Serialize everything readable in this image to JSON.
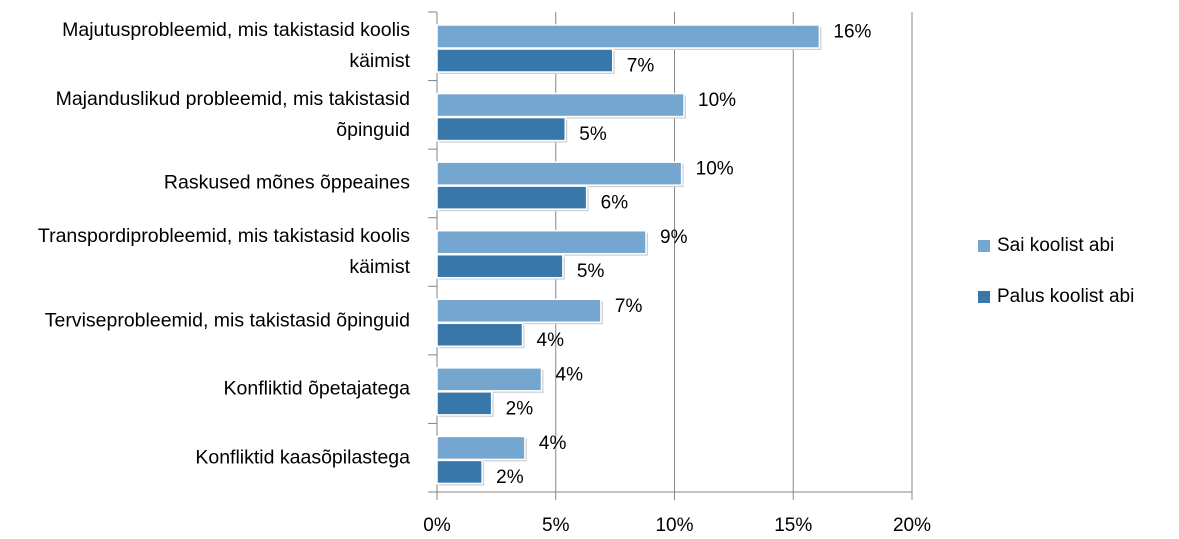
{
  "chart_data": {
    "type": "bar",
    "orientation": "horizontal",
    "categories": [
      "Majutusprobleemid, mis takistasid koolis käimist",
      "Majanduslikud probleemid, mis takistasid õpinguid",
      "Raskused mõnes õppeaines",
      "Transpordiprobleemid, mis takistasid koolis käimist",
      "Terviseprobleemid, mis takistasid õpinguid",
      "Konfliktid õpetajatega",
      "Konfliktid kaasõpilastega"
    ],
    "series": [
      {
        "name": "Sai koolist abi",
        "color": "#75a6cf",
        "values": [
          16.1,
          10.4,
          10.3,
          8.8,
          6.9,
          4.4,
          3.7
        ],
        "value_labels": [
          "16%",
          "10%",
          "10%",
          "9%",
          "7%",
          "4%",
          "4%"
        ]
      },
      {
        "name": "Palus koolist abi",
        "color": "#3777aa",
        "values": [
          7.4,
          5.4,
          6.3,
          5.3,
          3.6,
          2.3,
          1.9
        ],
        "value_labels": [
          "7%",
          "5%",
          "6%",
          "5%",
          "4%",
          "2%",
          "2%"
        ]
      }
    ],
    "xlim": [
      0,
      20
    ],
    "xticks": [
      {
        "value": 0,
        "label": "0%"
      },
      {
        "value": 5,
        "label": "5%"
      },
      {
        "value": 10,
        "label": "10%"
      },
      {
        "value": 15,
        "label": "15%"
      },
      {
        "value": 20,
        "label": "20%"
      }
    ],
    "grid": true,
    "legend": "right"
  }
}
